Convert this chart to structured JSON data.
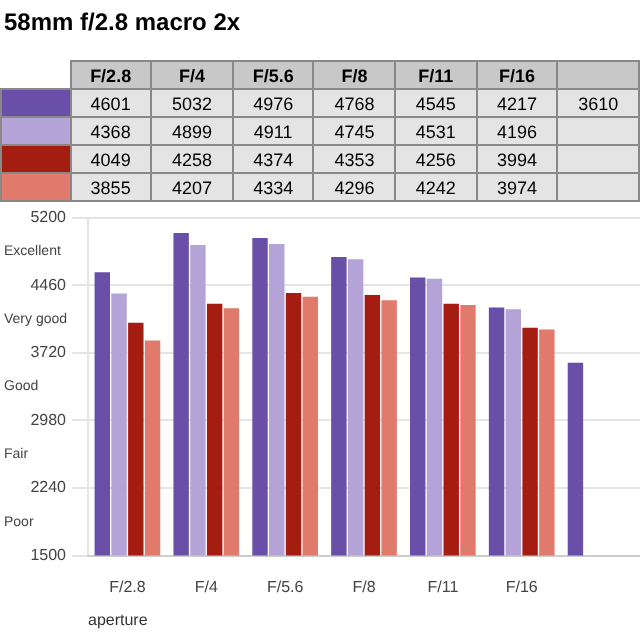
{
  "chart_data": {
    "type": "bar",
    "title": "58mm f/2.8 macro 2x",
    "xlabel": "aperture",
    "categories": [
      "F/2.8",
      "F/4",
      "F/5.6",
      "F/8",
      "F/11",
      "F/16",
      null
    ],
    "series": [
      {
        "color": "#6a4fa8",
        "values": [
          4601,
          5032,
          4976,
          4768,
          4545,
          4217,
          3610
        ]
      },
      {
        "color": "#b3a3d6",
        "values": [
          4368,
          4899,
          4911,
          4745,
          4531,
          4196,
          null
        ]
      },
      {
        "color": "#a51c10",
        "values": [
          4049,
          4258,
          4374,
          4353,
          4256,
          3994,
          null
        ]
      },
      {
        "color": "#e07a6a",
        "values": [
          3855,
          4207,
          4334,
          4296,
          4242,
          3974,
          null
        ]
      }
    ],
    "ylim": [
      1500,
      5200
    ],
    "yticks": [
      1500,
      2240,
      2980,
      3720,
      4460,
      5200
    ],
    "annotations": [
      "Excellent",
      "Very good",
      "Good",
      "Fair",
      "Poor"
    ],
    "grid": "y",
    "data_labels": true
  }
}
